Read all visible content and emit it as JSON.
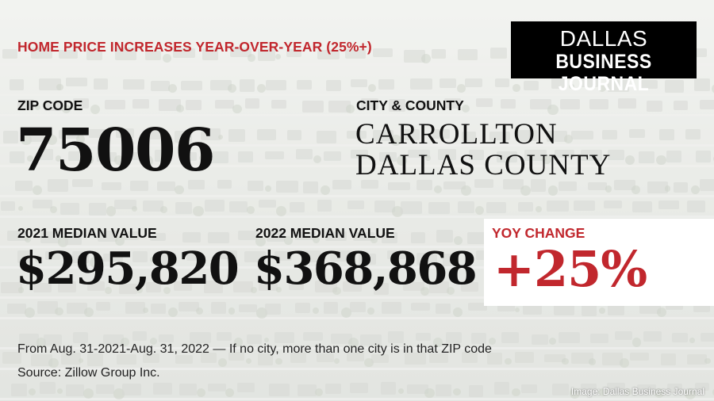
{
  "headline": "HOME PRICE INCREASES YEAR-OVER-YEAR (25%+)",
  "logo": {
    "line1": "DALLAS",
    "line2": "BUSINESS JOURNAL"
  },
  "zip": {
    "label": "ZIP CODE",
    "value": "75006"
  },
  "location": {
    "label": "CITY & COUNTY",
    "city": "CARROLLTON",
    "county": "DALLAS COUNTY"
  },
  "median_2021": {
    "label": "2021 MEDIAN VALUE",
    "value": "$295,820"
  },
  "median_2022": {
    "label": "2022 MEDIAN VALUE",
    "value": "$368,868"
  },
  "yoy": {
    "label": "YOY CHANGE",
    "value": "+25%"
  },
  "footnote": "From Aug. 31-2021-Aug. 31, 2022 — If no city, more than one city is in that ZIP code",
  "source": "Source:  Zillow Group Inc.",
  "image_credit": "Image: Dallas Business Journal",
  "colors": {
    "accent": "#c1272d",
    "text": "#111111",
    "logo_bg": "#000000"
  }
}
